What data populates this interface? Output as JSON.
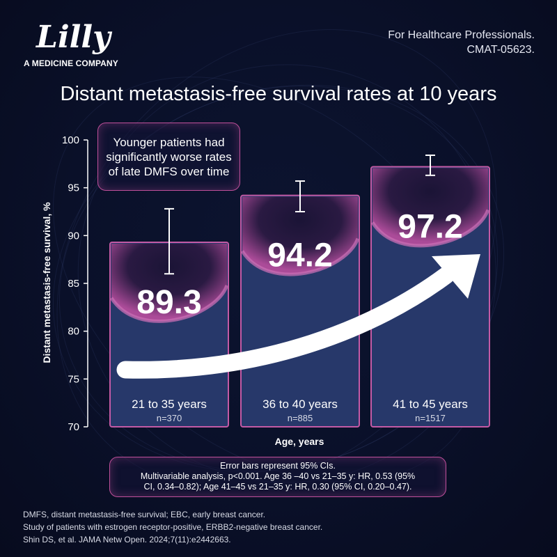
{
  "brand": {
    "logo_text": "Lilly",
    "tagline": "A MEDICINE COMPANY"
  },
  "header": {
    "audience": "For Healthcare Professionals.",
    "code": "CMAT-05623."
  },
  "callout": "Younger patients had significantly worse rates of late DMFS over time",
  "notes": {
    "line1": "Error bars represent 95% CIs.",
    "line2": "Multivariable analysis, p<0.001. Age 36 –40 vs 21–35 y: HR, 0.53 (95%",
    "line3": "CI, 0.34–0.82); Age 41–45 vs 21–35 y: HR, 0.30 (95% CI, 0.20–0.47)."
  },
  "footer": {
    "line1": "DMFS, distant metastasis-free survival; EBC, early breast cancer.",
    "line2": "Study of patients with estrogen receptor-positive, ERBB2-negative breast cancer.",
    "line3": "Shin DS, et al. JAMA Netw Open. 2024;7(11):e2442663."
  },
  "colors": {
    "bar_fill": "#27386a",
    "bar_border": "#c45aa5",
    "top_glow": "#b24c9b",
    "background": "#0a1029",
    "arrow": "#ffffff"
  },
  "chart_data": {
    "type": "bar",
    "title": "Distant metastasis-free survival rates at 10 years",
    "xlabel": "Age, years",
    "ylabel": "Distant metastasis-free survival, %",
    "ylim": [
      70,
      100
    ],
    "yticks": [
      70,
      75,
      80,
      85,
      90,
      95,
      100
    ],
    "categories": [
      "21 to 35 years",
      "36 to 40 years",
      "41 to 45 years"
    ],
    "n_labels": [
      "n=370",
      "n=885",
      "n=1517"
    ],
    "values": [
      89.3,
      94.2,
      97.2
    ],
    "value_labels": [
      "89.3",
      "94.2",
      "97.2"
    ],
    "error_low": [
      86.0,
      92.5,
      96.3
    ],
    "error_high": [
      92.8,
      95.7,
      98.4
    ],
    "grid": false,
    "legend": "none"
  }
}
